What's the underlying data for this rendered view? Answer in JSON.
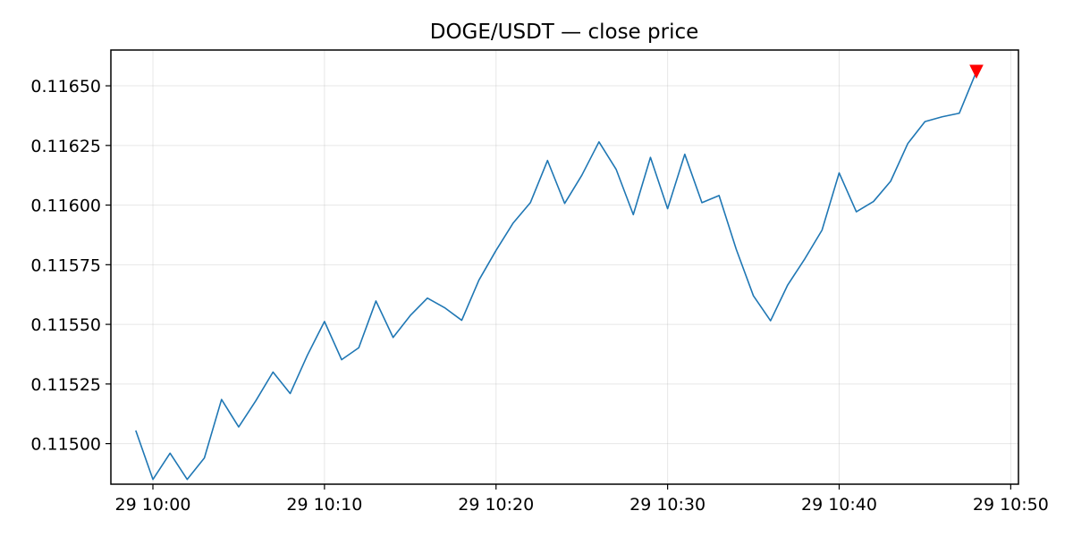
{
  "chart_data": {
    "type": "line",
    "title": "DOGE/USDT — close price",
    "xlabel": "",
    "ylabel": "",
    "x_tick_labels": [
      "29 10:00",
      "29 10:10",
      "29 10:20",
      "29 10:30",
      "29 10:40",
      "29 10:50"
    ],
    "x_tick_values": [
      "10:00",
      "10:10",
      "10:20",
      "10:30",
      "10:40",
      "10:50"
    ],
    "y_ticks": [
      0.115,
      0.11525,
      0.1155,
      0.11575,
      0.116,
      0.11625,
      0.1165
    ],
    "y_tick_labels": [
      "0.11500",
      "0.11525",
      "0.11550",
      "0.11575",
      "0.11600",
      "0.11625",
      "0.11650"
    ],
    "xlim": [
      "09:57.55",
      "10:50.45"
    ],
    "ylim": [
      0.11483,
      0.11665
    ],
    "grid": true,
    "series": [
      {
        "color": "#1f77b4",
        "x": [
          "09:59",
          "10:00",
          "10:01",
          "10:02",
          "10:03",
          "10:04",
          "10:05",
          "10:06",
          "10:07",
          "10:08",
          "10:09",
          "10:10",
          "10:11",
          "10:12",
          "10:13",
          "10:14",
          "10:15",
          "10:16",
          "10:17",
          "10:18",
          "10:19",
          "10:20",
          "10:21",
          "10:22",
          "10:23",
          "10:24",
          "10:25",
          "10:26",
          "10:27",
          "10:28",
          "10:29",
          "10:30",
          "10:31",
          "10:32",
          "10:33",
          "10:34",
          "10:35",
          "10:36",
          "10:37",
          "10:38",
          "10:39",
          "10:40",
          "10:41",
          "10:42",
          "10:43",
          "10:44",
          "10:45",
          "10:46",
          "10:47",
          "10:48"
        ],
        "values": [
          0.115055,
          0.11485,
          0.11496,
          0.11485,
          0.11494,
          0.115185,
          0.11507,
          0.11518,
          0.1153,
          0.11521,
          0.11537,
          0.115512,
          0.115352,
          0.115402,
          0.115598,
          0.115445,
          0.115537,
          0.11561,
          0.11557,
          0.115517,
          0.115685,
          0.11581,
          0.115925,
          0.11601,
          0.116187,
          0.116007,
          0.116125,
          0.116265,
          0.11615,
          0.11596,
          0.1162,
          0.115985,
          0.116213,
          0.11601,
          0.11604,
          0.115815,
          0.11562,
          0.115515,
          0.115665,
          0.115775,
          0.115895,
          0.116135,
          0.115972,
          0.116015,
          0.1161,
          0.116258,
          0.11635,
          0.11637,
          0.116385,
          0.11656
        ]
      }
    ],
    "marker": {
      "x": "10:48",
      "value": 0.11656,
      "symbol": "triangle-down",
      "color": "#ff0000"
    }
  }
}
